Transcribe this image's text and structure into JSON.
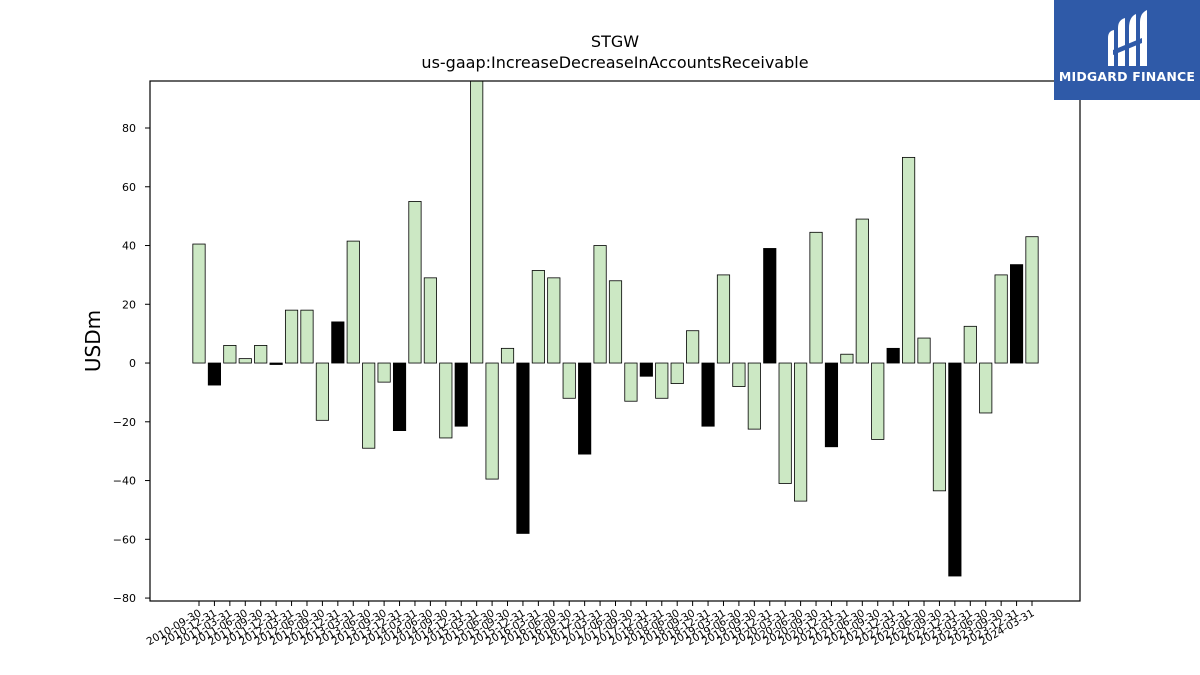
{
  "chart_data": {
    "type": "bar",
    "title": "STGW",
    "subtitle": "us-gaap:IncreaseDecreaseInAccountsReceivable",
    "ylabel": "USDm",
    "xlabel": "",
    "ylim": [
      -81,
      96
    ],
    "yticks": [
      -80,
      -60,
      -40,
      -20,
      0,
      20,
      40,
      60,
      80
    ],
    "grid": false,
    "colors": {
      "default": "#cce8c4",
      "highlight": "#000000",
      "edge": "#000000"
    },
    "categories": [
      "2010-09-30",
      "2010-12-31",
      "2011-03-31",
      "2011-06-30",
      "2011-09-30",
      "2011-12-31",
      "2012-03-31",
      "2012-06-30",
      "2012-09-30",
      "2012-12-31",
      "2013-03-31",
      "2013-06-30",
      "2013-09-30",
      "2013-12-31",
      "2014-03-31",
      "2014-06-30",
      "2014-09-30",
      "2014-12-31",
      "2015-03-31",
      "2015-06-30",
      "2015-09-30",
      "2015-12-31",
      "2016-03-31",
      "2016-06-30",
      "2016-09-30",
      "2016-12-31",
      "2017-03-31",
      "2017-06-30",
      "2017-09-30",
      "2017-12-31",
      "2018-03-31",
      "2018-06-30",
      "2018-09-30",
      "2018-12-31",
      "2019-03-31",
      "2019-06-30",
      "2019-09-30",
      "2019-12-31",
      "2020-03-31",
      "2020-06-30",
      "2020-09-30",
      "2020-12-31",
      "2021-03-31",
      "2021-06-30",
      "2021-09-30",
      "2021-12-31",
      "2022-03-31",
      "2022-06-30",
      "2022-09-30",
      "2022-12-31",
      "2023-03-31",
      "2023-06-30",
      "2023-09-30",
      "2023-12-31",
      "2024-03-31"
    ],
    "tick_labels": [
      "2010-09-30",
      "2010-12-31",
      "2011-03-31",
      "2011-06-30",
      "2011-09-30",
      "2011-12-31",
      "2012-03-31",
      "2012-06-30",
      "2012-09-30",
      "2012-12-31",
      "2013-03-31",
      "2013-06-30",
      "2013-09-30",
      "2013-12-31",
      "2014-03-31",
      "2014-06-30",
      "2014-09-30",
      "2014-12-31",
      "2015-03-31",
      "2015-06-30",
      "2015-09-30",
      "2015-12-31",
      "2016-03-31",
      "2016-06-30",
      "2016-09-30",
      "2016-12-31",
      "2017-03-31",
      "2017-06-30",
      "2017-09-30",
      "2017-12-31",
      "2018-03-31",
      "2018-06-30",
      "2018-09-30",
      "2018-12-31",
      "2019-03-31",
      "2019-06-30",
      "2019-09-30",
      "2019-12-31",
      "2020-03-31",
      "2020-06-30",
      "2020-09-30",
      "2020-12-31",
      "2021-03-31",
      "2021-06-30",
      "2021-09-30",
      "2021-12-31",
      "2022-03-31",
      "2022-06-30",
      "2022-09-30",
      "2022-12-31",
      "2023-03-31",
      "2023-06-30",
      "2023-09-30",
      "2023-12-31",
      "2024-03-31"
    ],
    "values": [
      40.5,
      -7.5,
      6,
      1.5,
      6,
      -0.5,
      18,
      18,
      -19.5,
      14,
      41.5,
      -29,
      -6.5,
      -23,
      55,
      29,
      -25.5,
      -21.5,
      96,
      -39.5,
      5,
      -58,
      31.5,
      29,
      -12,
      -31,
      40,
      28,
      -13,
      -4.5,
      -12,
      -7,
      11,
      -21.5,
      30,
      -8,
      -22.5,
      39,
      -41,
      -47,
      44.5,
      -28.5,
      3,
      49,
      -26,
      5,
      70,
      8.5,
      -43.5,
      -72.5,
      12.5,
      -17,
      30,
      33.5,
      43
    ],
    "highlight": [
      false,
      true,
      false,
      false,
      false,
      true,
      false,
      false,
      false,
      true,
      false,
      false,
      false,
      true,
      false,
      false,
      false,
      true,
      false,
      false,
      false,
      true,
      false,
      false,
      false,
      true,
      false,
      false,
      false,
      true,
      false,
      false,
      false,
      true,
      false,
      false,
      false,
      true,
      false,
      false,
      false,
      true,
      false,
      false,
      false,
      true,
      false,
      false,
      false,
      true,
      false,
      false,
      false,
      true,
      false
    ]
  },
  "brand": {
    "name": "MIDGARD FINANCE"
  }
}
